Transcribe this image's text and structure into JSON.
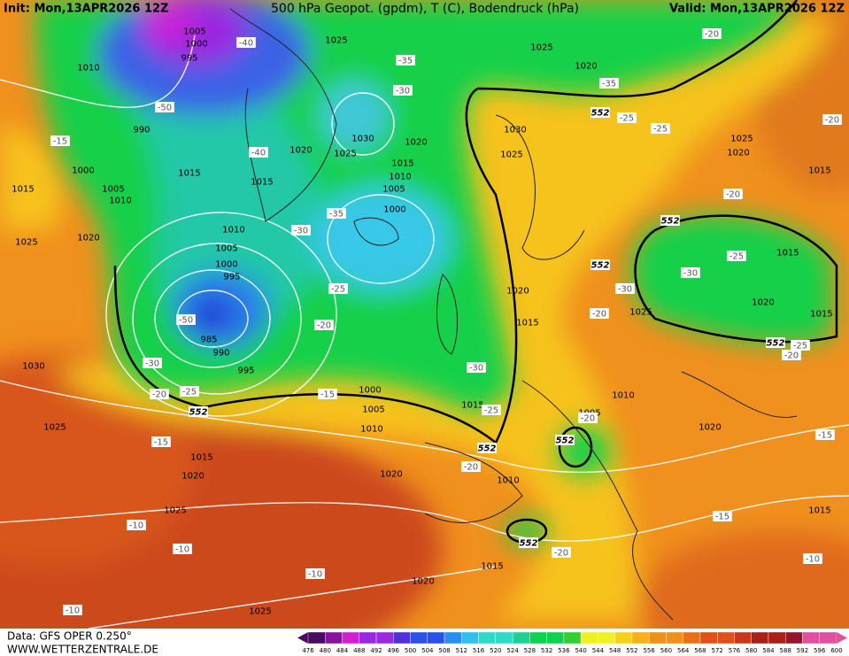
{
  "header": {
    "init": "Init: Mon,13APR2026 12Z",
    "title": "500 hPa Geopot. (gpdm), T (C), Bodendruck (hPa)",
    "valid": "Valid: Mon,13APR2026 12Z"
  },
  "footer": {
    "data": "Data: GFS OPER 0.250°",
    "site": "WWW.WETTERZENTRALE.DE"
  },
  "colorbar": {
    "labels": [
      "476",
      "480",
      "484",
      "488",
      "492",
      "496",
      "500",
      "504",
      "508",
      "512",
      "516",
      "520",
      "524",
      "528",
      "532",
      "536",
      "540",
      "544",
      "548",
      "552",
      "556",
      "560",
      "564",
      "568",
      "572",
      "576",
      "580",
      "584",
      "588",
      "592",
      "596",
      "600"
    ]
  },
  "map": {
    "pressure_labels": [
      "1005",
      "1000",
      "995",
      "1010",
      "1025",
      "1025",
      "1020",
      "990",
      "1030",
      "1030",
      "1020",
      "1020",
      "1025",
      "1025",
      "1025",
      "1020",
      "1000",
      "1015",
      "1015",
      "1010",
      "1015",
      "1005",
      "1015",
      "1005",
      "1010",
      "1000",
      "1015",
      "1010",
      "1025",
      "1020",
      "1005",
      "1015",
      "1000",
      "995",
      "1020",
      "1020",
      "1025",
      "1015",
      "1015",
      "985",
      "990",
      "1030",
      "995",
      "1000",
      "1010",
      "1005",
      "1015",
      "1005",
      "1010",
      "1025",
      "1020",
      "1015",
      "1020",
      "1020",
      "1010",
      "1025",
      "1015",
      "1015",
      "1020",
      "1025"
    ],
    "temperature_labels": [
      "-40",
      "-20",
      "-35",
      "-35",
      "-30",
      "-50",
      "-25",
      "-25",
      "-20",
      "-15",
      "-40",
      "-35",
      "-30",
      "-20",
      "-25",
      "-30",
      "-25",
      "-30",
      "-20",
      "-50",
      "-20",
      "-25",
      "-20",
      "-30",
      "-20",
      "-25",
      "-15",
      "-30",
      "-25",
      "-20",
      "-15",
      "-20",
      "-15",
      "-15",
      "-10",
      "-10",
      "-20",
      "-10",
      "-10",
      "-10"
    ],
    "height_labels": [
      "552",
      "552",
      "552",
      "552",
      "552",
      "552",
      "552",
      "552"
    ]
  }
}
